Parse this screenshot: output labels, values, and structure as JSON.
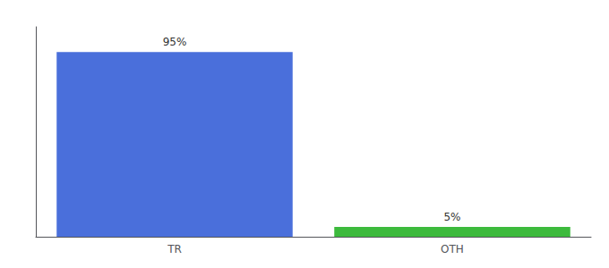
{
  "chart_data": {
    "type": "bar",
    "categories": [
      "TR",
      "OTH"
    ],
    "values": [
      95,
      5
    ],
    "colors": [
      "#4a6fdb",
      "#3dba3d"
    ],
    "value_labels": [
      "95%",
      "5%"
    ],
    "data_labels": true,
    "ylim": [
      0,
      108
    ],
    "yticks": [],
    "tick_labels": "x",
    "grid": false
  }
}
